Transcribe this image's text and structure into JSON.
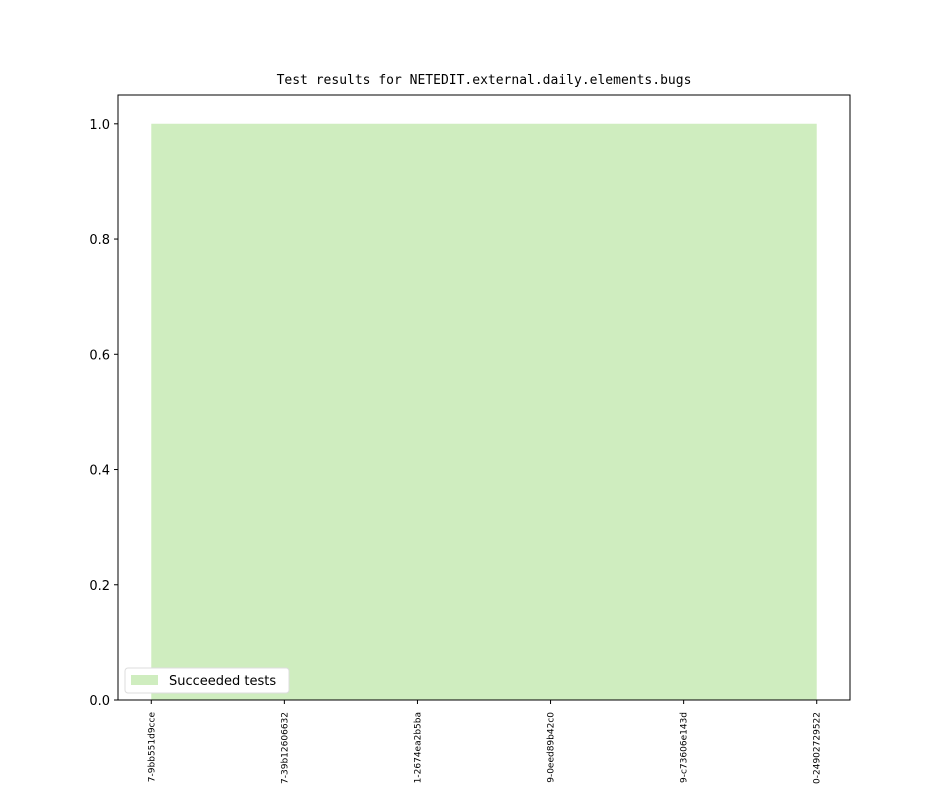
{
  "chart_data": {
    "type": "area",
    "title": "Test results for NETEDIT.external.daily.elements.bugs",
    "xlabel": "",
    "ylabel": "",
    "categories": [
      "7-9bb551d9cce",
      "7-39b12606632",
      "1-2674ea2b5ba",
      "9-0eed89b42c0",
      "9-c73606e143d",
      "0-24902729522"
    ],
    "series": [
      {
        "name": "Succeeded tests",
        "values": [
          1,
          1,
          1,
          1,
          1,
          1
        ],
        "color": "#cfedbf"
      }
    ],
    "ylim": [
      0,
      1.05
    ],
    "yticks": [
      "0.0",
      "0.2",
      "0.4",
      "0.6",
      "0.8",
      "1.0"
    ],
    "grid": false,
    "legend": "lower-left"
  }
}
